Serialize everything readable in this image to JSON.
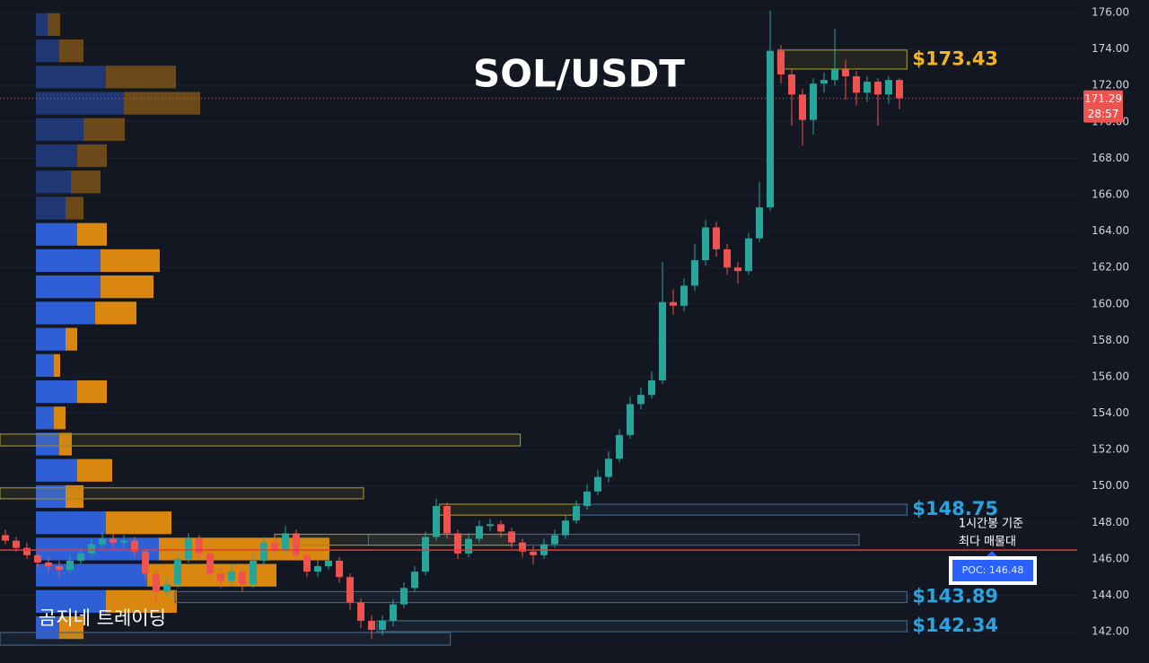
{
  "chart_data": {
    "type": "candlestick",
    "title": "SOL/USDT",
    "watermark": "곰지네 트레이딩",
    "open": [
      147.3,
      147.0,
      146.6,
      146.2,
      145.8,
      145.6,
      145.4,
      145.9,
      146.3,
      146.8,
      147.1,
      146.9,
      147.0,
      146.4,
      145.2,
      144.2,
      144.6,
      146.0,
      147.1,
      146.3,
      145.2,
      144.8,
      145.3,
      144.6,
      145.9,
      146.9,
      146.5,
      147.4,
      146.2,
      145.3,
      145.6,
      145.9,
      145.0,
      143.6,
      142.6,
      142.1,
      142.6,
      143.5,
      144.4,
      145.3,
      147.2,
      148.9,
      147.4,
      146.3,
      147.1,
      147.8,
      147.9,
      147.5,
      146.9,
      146.4,
      146.2,
      146.8,
      147.3,
      148.1,
      148.9,
      149.7,
      150.5,
      151.5,
      152.8,
      154.5,
      155.0,
      155.8,
      160.1,
      159.9,
      161.0,
      162.4,
      164.2,
      163.0,
      162.0,
      161.8,
      163.6,
      165.3,
      173.9,
      172.6,
      171.5,
      170.1,
      172.1,
      172.3,
      172.9,
      172.5,
      171.6,
      172.2,
      171.5,
      172.3
    ],
    "high": [
      147.6,
      147.2,
      146.9,
      146.4,
      146.1,
      145.9,
      146.2,
      146.6,
      147.1,
      147.5,
      147.4,
      147.3,
      147.2,
      146.6,
      145.4,
      145.0,
      146.3,
      147.4,
      147.3,
      146.5,
      145.5,
      145.7,
      145.5,
      146.2,
      147.2,
      147.2,
      147.8,
      147.6,
      146.4,
      145.9,
      146.3,
      146.1,
      145.2,
      143.8,
      142.9,
      142.9,
      143.8,
      144.7,
      145.6,
      147.5,
      149.3,
      149.1,
      147.6,
      147.4,
      148.1,
      148.2,
      148.1,
      147.7,
      147.1,
      146.7,
      147.1,
      147.6,
      148.4,
      149.2,
      150.1,
      150.9,
      151.9,
      153.1,
      154.9,
      155.4,
      156.3,
      162.3,
      160.8,
      161.4,
      163.3,
      164.6,
      164.5,
      163.3,
      162.3,
      163.9,
      166.7,
      176.1,
      174.2,
      172.9,
      171.8,
      172.4,
      172.7,
      175.1,
      173.4,
      172.8,
      172.5,
      172.4,
      172.5,
      172.4
    ],
    "low": [
      146.8,
      146.4,
      146.0,
      145.5,
      145.3,
      145.0,
      145.2,
      145.7,
      146.1,
      146.6,
      146.6,
      146.6,
      146.1,
      144.9,
      143.6,
      143.9,
      144.4,
      145.8,
      146.0,
      144.9,
      144.4,
      144.6,
      144.2,
      144.4,
      145.7,
      146.2,
      146.3,
      145.9,
      145.0,
      145.0,
      145.4,
      144.7,
      143.2,
      142.2,
      141.6,
      141.8,
      142.3,
      143.3,
      144.2,
      145.1,
      147.0,
      147.1,
      146.0,
      146.1,
      146.9,
      147.5,
      147.2,
      146.6,
      146.1,
      145.7,
      146.0,
      146.6,
      147.1,
      147.9,
      148.7,
      149.5,
      150.2,
      151.3,
      152.6,
      154.2,
      154.8,
      155.6,
      159.4,
      159.6,
      160.7,
      162.1,
      162.6,
      161.6,
      161.1,
      161.6,
      163.4,
      165.1,
      172.1,
      169.8,
      168.7,
      169.3,
      171.6,
      172.0,
      171.2,
      170.9,
      171.1,
      169.8,
      171.0,
      170.7
    ],
    "close": [
      147.0,
      146.6,
      146.2,
      145.8,
      145.6,
      145.4,
      145.9,
      146.3,
      146.8,
      147.1,
      146.9,
      147.0,
      146.4,
      145.2,
      144.2,
      144.6,
      146.0,
      147.1,
      146.3,
      145.2,
      144.8,
      145.3,
      144.6,
      145.9,
      146.9,
      146.5,
      147.4,
      146.2,
      145.3,
      145.6,
      145.9,
      145.0,
      143.6,
      142.6,
      142.1,
      142.6,
      143.5,
      144.4,
      145.3,
      147.2,
      148.9,
      147.4,
      146.3,
      147.1,
      147.8,
      147.9,
      147.5,
      146.9,
      146.4,
      146.2,
      146.8,
      147.3,
      148.1,
      148.9,
      149.7,
      150.5,
      151.5,
      152.8,
      154.5,
      155.0,
      155.8,
      160.1,
      159.9,
      161.0,
      162.4,
      164.2,
      163.0,
      162.0,
      161.8,
      163.6,
      165.3,
      173.9,
      172.6,
      171.5,
      170.1,
      172.1,
      172.3,
      172.9,
      172.5,
      171.6,
      172.2,
      171.5,
      172.3,
      171.29
    ],
    "up_color": "#26a69a",
    "down_color": "#ef5350",
    "countdown": "28:57",
    "ylim": [
      140.28,
      176.69
    ],
    "yticks": [
      {
        "value": 142,
        "label": "142.00"
      },
      {
        "value": 144,
        "label": "144.00"
      },
      {
        "value": 146,
        "label": "146.00"
      },
      {
        "value": 148,
        "label": "148.00"
      },
      {
        "value": 150,
        "label": "150.00"
      },
      {
        "value": 152,
        "label": "152.00"
      },
      {
        "value": 154,
        "label": "154.00"
      },
      {
        "value": 156,
        "label": "156.00"
      },
      {
        "value": 158,
        "label": "158.00"
      },
      {
        "value": 160,
        "label": "160.00"
      },
      {
        "value": 162,
        "label": "162.00"
      },
      {
        "value": 164,
        "label": "164.00"
      },
      {
        "value": 166,
        "label": "166.00"
      },
      {
        "value": 168,
        "label": "168.00"
      },
      {
        "value": 170,
        "label": "170.00"
      },
      {
        "value": 172,
        "label": "172.00"
      },
      {
        "value": 174,
        "label": "174.00"
      },
      {
        "value": 176,
        "label": "176.00"
      }
    ],
    "grid": true,
    "volume_profile": {
      "bins": [
        141.5,
        142.94,
        144.38,
        145.82,
        147.26,
        148.7,
        150.14,
        151.58,
        153.02,
        154.46,
        155.9,
        157.34,
        158.78,
        160.22,
        161.66,
        163.1,
        164.54,
        165.98,
        167.42,
        168.86,
        170.3,
        171.74,
        173.18,
        174.62,
        176.06
      ],
      "up": [
        26,
        78,
        124,
        137,
        78,
        33,
        46,
        26,
        20,
        46,
        20,
        33,
        66,
        72,
        72,
        46,
        33,
        39,
        46,
        53,
        98,
        78,
        26,
        13
      ],
      "down": [
        27,
        79,
        144,
        190,
        73,
        20,
        39,
        14,
        13,
        33,
        7,
        13,
        46,
        59,
        66,
        33,
        20,
        33,
        33,
        46,
        85,
        78,
        27,
        14
      ],
      "up_color": "#2f5fd6",
      "down_color": "#d9870f",
      "value_area": [
        141.5,
        164.54
      ]
    },
    "zones": [
      {
        "low": 152.2,
        "high": 152.85,
        "start": -0.5,
        "end": 47.8,
        "color": "#9c8a2a"
      },
      {
        "low": 149.3,
        "high": 149.9,
        "start": -0.5,
        "end": 33.25,
        "color": "#9c8a2a"
      },
      {
        "low": 172.9,
        "high": 173.94,
        "start": 71.7,
        "end": 83.7,
        "color": "#9c8a2a",
        "label": "$173.43",
        "label_color": "#f5b31d"
      },
      {
        "low": 148.4,
        "high": 149.0,
        "start": 40.3,
        "end": 53.25,
        "color": "#9c8a2a"
      },
      {
        "low": 148.4,
        "high": 149.0,
        "start": 53.25,
        "end": 83.7,
        "color": "#3f6283",
        "label": "$148.75",
        "label_color": "#2aa3e0"
      },
      {
        "low": 146.75,
        "high": 147.35,
        "start": 33.7,
        "end": 79.25,
        "color": "#3f6283"
      },
      {
        "low": 146.75,
        "high": 147.35,
        "start": 25,
        "end": 47,
        "color": "#9c8a2a"
      },
      {
        "low": 143.6,
        "high": 144.2,
        "start": 15.75,
        "end": 83.7,
        "color": "#3f6283",
        "label": "$143.89",
        "label_color": "#2aa3e0"
      },
      {
        "low": 142.0,
        "high": 142.6,
        "start": 34.5,
        "end": 83.7,
        "color": "#3f6283",
        "label": "$142.34",
        "label_color": "#2aa3e0"
      },
      {
        "low": 141.26,
        "high": 141.95,
        "start": -0.5,
        "end": 41.3,
        "color": "#3f6283"
      }
    ],
    "poc": {
      "value": 146.48,
      "label": "POC: 146.48",
      "color": "#e53935",
      "note": [
        "1시간봉 기준",
        "최다 매물대"
      ]
    }
  }
}
